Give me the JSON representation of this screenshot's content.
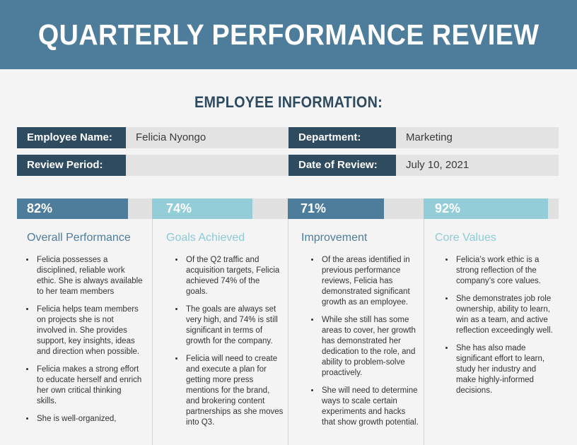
{
  "header": {
    "title": "QUARTERLY PERFORMANCE REVIEW"
  },
  "section_title": "EMPLOYEE INFORMATION:",
  "employee_info": {
    "name_label": "Employee Name:",
    "name_value": "Felicia Nyongo",
    "department_label": "Department:",
    "department_value": "Marketing",
    "period_label": "Review Period:",
    "period_value": "",
    "date_label": "Date of Review:",
    "date_value": "July 10, 2021"
  },
  "metrics": [
    {
      "percent_text": "82%",
      "value": 0.82,
      "title": "Overall Performance",
      "color": "#4d7d9a",
      "bullets": [
        "Felicia possesses a disciplined, reliable work ethic. She is always available to her team members",
        "Felicia helps team members on projects she is not involved in. She provides support, key insights, ideas and direction when possible.",
        "Felicia makes a strong effort to educate herself and enrich her own critical thinking skills.",
        "She is well-organized,"
      ]
    },
    {
      "percent_text": "74%",
      "value": 0.74,
      "title": "Goals Achieved",
      "color": "#92cdd8",
      "bullets": [
        "Of the Q2 traffic and acquisition targets, Felicia achieved 74% of the goals.",
        "The goals are always set very high, and 74% is still significant in terms of growth for the company.",
        "Felicia will need to create and execute a plan for getting more press mentions for the brand, and brokering content partnerships as she moves into Q3."
      ]
    },
    {
      "percent_text": "71%",
      "value": 0.71,
      "title": "Improvement",
      "color": "#4d7d9a",
      "bullets": [
        "Of the areas identified in previous performance reviews, Felicia has demonstrated significant growth as an employee.",
        "While she still has some areas to cover, her growth has demonstrated her dedication to the role, and ability to problem-solve proactively.",
        "She will need to determine ways to scale certain experiments and hacks that show growth potential."
      ]
    },
    {
      "percent_text": "92%",
      "value": 0.92,
      "title": "Core Values",
      "color": "#92cdd8",
      "bullets": [
        "Felicia’s work ethic is a strong reflection of the company’s core values.",
        "She demonstrates job role ownership, ability to learn, win as a team, and active reflection exceedingly well.",
        "She has also made significant effort to learn, study her industry and make highly-informed decisions."
      ]
    }
  ]
}
